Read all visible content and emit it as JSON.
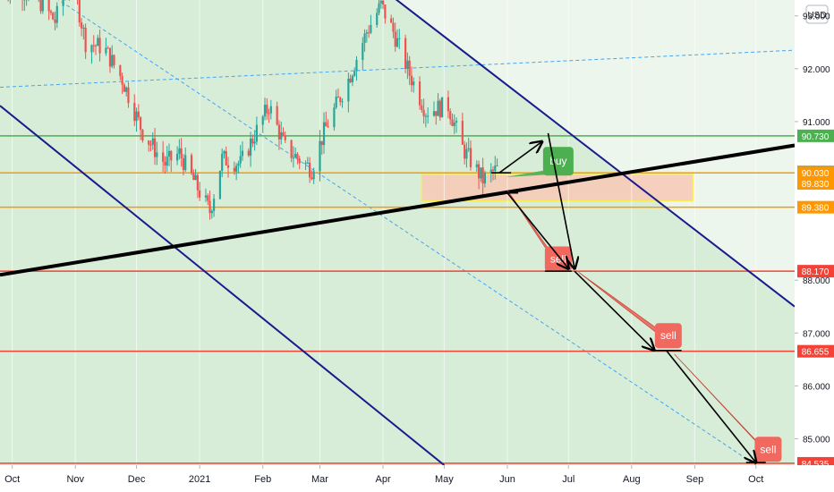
{
  "currency": "USD",
  "colors": {
    "up": "#26a69a",
    "down": "#ef5350",
    "channel": "#1a1a8c",
    "trend": "#000000",
    "support": "#ff9800",
    "resistance_green": "#4caf50",
    "sell_line": "#f44336",
    "dashed": "#42a5f5",
    "zone_fill": "#c8e6c9",
    "box_fill": "#f8c9b6",
    "box_border": "#ffeb3b",
    "label_sell": "#f0685e",
    "label_buy": "#4caf50",
    "text": "#131722"
  },
  "chart_data": {
    "type": "candlestick",
    "y_axis": {
      "min": 84.5,
      "max": 93.3,
      "ticks": [
        {
          "value": 93.0,
          "label": "93.000"
        },
        {
          "value": 92.0,
          "label": "92.000"
        },
        {
          "value": 91.0,
          "label": "91.000"
        },
        {
          "value": 88.0,
          "label": "88.000"
        },
        {
          "value": 87.0,
          "label": "87.000"
        },
        {
          "value": 86.0,
          "label": "86.000"
        },
        {
          "value": 85.0,
          "label": "85.000"
        }
      ]
    },
    "x_axis": {
      "start": "2020-09-25",
      "end": "2021-10-20",
      "ticks": [
        {
          "date": "2020-10-01",
          "label": "Oct"
        },
        {
          "date": "2020-11-01",
          "label": "Nov"
        },
        {
          "date": "2020-12-01",
          "label": "Dec"
        },
        {
          "date": "2021-01-01",
          "label": "2021"
        },
        {
          "date": "2021-02-01",
          "label": "Feb"
        },
        {
          "date": "2021-03-01",
          "label": "Mar"
        },
        {
          "date": "2021-04-01",
          "label": "Apr"
        },
        {
          "date": "2021-05-01",
          "label": "May"
        },
        {
          "date": "2021-06-01",
          "label": "Jun"
        },
        {
          "date": "2021-07-01",
          "label": "Jul"
        },
        {
          "date": "2021-08-01",
          "label": "Aug"
        },
        {
          "date": "2021-09-01",
          "label": "Sep"
        },
        {
          "date": "2021-10-01",
          "label": "Oct"
        }
      ]
    },
    "price_path": [
      [
        "2020-09-25",
        93.6
      ],
      [
        "2020-10-05",
        93.5
      ],
      [
        "2020-10-14",
        93.3
      ],
      [
        "2020-10-22",
        92.9
      ],
      [
        "2020-10-30",
        93.8
      ],
      [
        "2020-11-06",
        92.5
      ],
      [
        "2020-11-15",
        92.4
      ],
      [
        "2020-11-24",
        91.8
      ],
      [
        "2020-12-04",
        90.8
      ],
      [
        "2020-12-15",
        90.2
      ],
      [
        "2020-12-22",
        90.4
      ],
      [
        "2021-01-06",
        89.3
      ],
      [
        "2021-01-12",
        90.3
      ],
      [
        "2021-01-21",
        90.2
      ],
      [
        "2021-02-04",
        91.3
      ],
      [
        "2021-02-12",
        90.5
      ],
      [
        "2021-02-25",
        90.1
      ],
      [
        "2021-03-03",
        90.8
      ],
      [
        "2021-03-15",
        91.8
      ],
      [
        "2021-03-24",
        92.7
      ],
      [
        "2021-03-31",
        93.2
      ],
      [
        "2021-04-06",
        92.7
      ],
      [
        "2021-04-14",
        91.9
      ],
      [
        "2021-04-22",
        91.2
      ],
      [
        "2021-05-03",
        91.3
      ],
      [
        "2021-05-10",
        90.5
      ],
      [
        "2021-05-20",
        89.9
      ],
      [
        "2021-05-27",
        90.1
      ]
    ],
    "price_levels": [
      {
        "value": 90.73,
        "label": "90.730",
        "color": "#4caf50",
        "line": true
      },
      {
        "value": 90.045,
        "label": "90.045",
        "color": "#26a69a",
        "line": false
      },
      {
        "value": 90.03,
        "label": "90.030",
        "color": "#ff9800",
        "line": true
      },
      {
        "value": 89.83,
        "label": "89.830",
        "color": "#ff9800",
        "line": false
      },
      {
        "value": 89.38,
        "label": "89.380",
        "color": "#ff9800",
        "line": true
      },
      {
        "value": 88.17,
        "label": "88.170",
        "color": "#f44336",
        "line": true
      },
      {
        "value": 86.655,
        "label": "86.655",
        "color": "#f44336",
        "line": true
      },
      {
        "value": 84.535,
        "label": "84.535",
        "color": "#f44336",
        "line": true
      }
    ],
    "channel": {
      "upper": [
        [
          "2021-04-01",
          93.5
        ],
        [
          "2021-10-20",
          87.5
        ]
      ],
      "lower": [
        [
          "2020-09-25",
          91.3
        ],
        [
          "2021-05-01",
          84.5
        ]
      ]
    },
    "dashed_lines": [
      {
        "points": [
          [
            "2020-10-20",
            93.4
          ],
          [
            "2021-10-01",
            84.5
          ]
        ]
      },
      {
        "points": [
          [
            "2020-09-25",
            91.65
          ],
          [
            "2021-10-20",
            92.35
          ]
        ]
      }
    ],
    "trendline": [
      [
        "2020-09-25",
        88.1
      ],
      [
        "2021-10-20",
        90.55
      ]
    ],
    "support_zone": {
      "date_start": "2021-04-20",
      "date_end": "2021-08-31",
      "top": 90.0,
      "bottom": 89.5
    },
    "buy_label": "buy",
    "sell_labels": [
      {
        "text": "sell",
        "date": "2021-06-26",
        "value": 88.4
      },
      {
        "text": "sell",
        "date": "2021-08-19",
        "value": 86.95
      },
      {
        "text": "sell",
        "date": "2021-10-07",
        "value": 84.8
      }
    ],
    "arrows": [
      [
        [
          "2021-05-28",
          90.03
        ],
        [
          "2021-06-18",
          90.62
        ]
      ],
      [
        [
          "2021-06-21",
          90.78
        ],
        [
          "2021-07-04",
          88.22
        ]
      ],
      [
        [
          "2021-06-01",
          89.65
        ],
        [
          "2021-07-01",
          88.22
        ]
      ],
      [
        [
          "2021-07-04",
          88.17
        ],
        [
          "2021-08-12",
          86.68
        ]
      ],
      [
        [
          "2021-08-18",
          86.67
        ],
        [
          "2021-10-01",
          84.55
        ]
      ]
    ]
  }
}
